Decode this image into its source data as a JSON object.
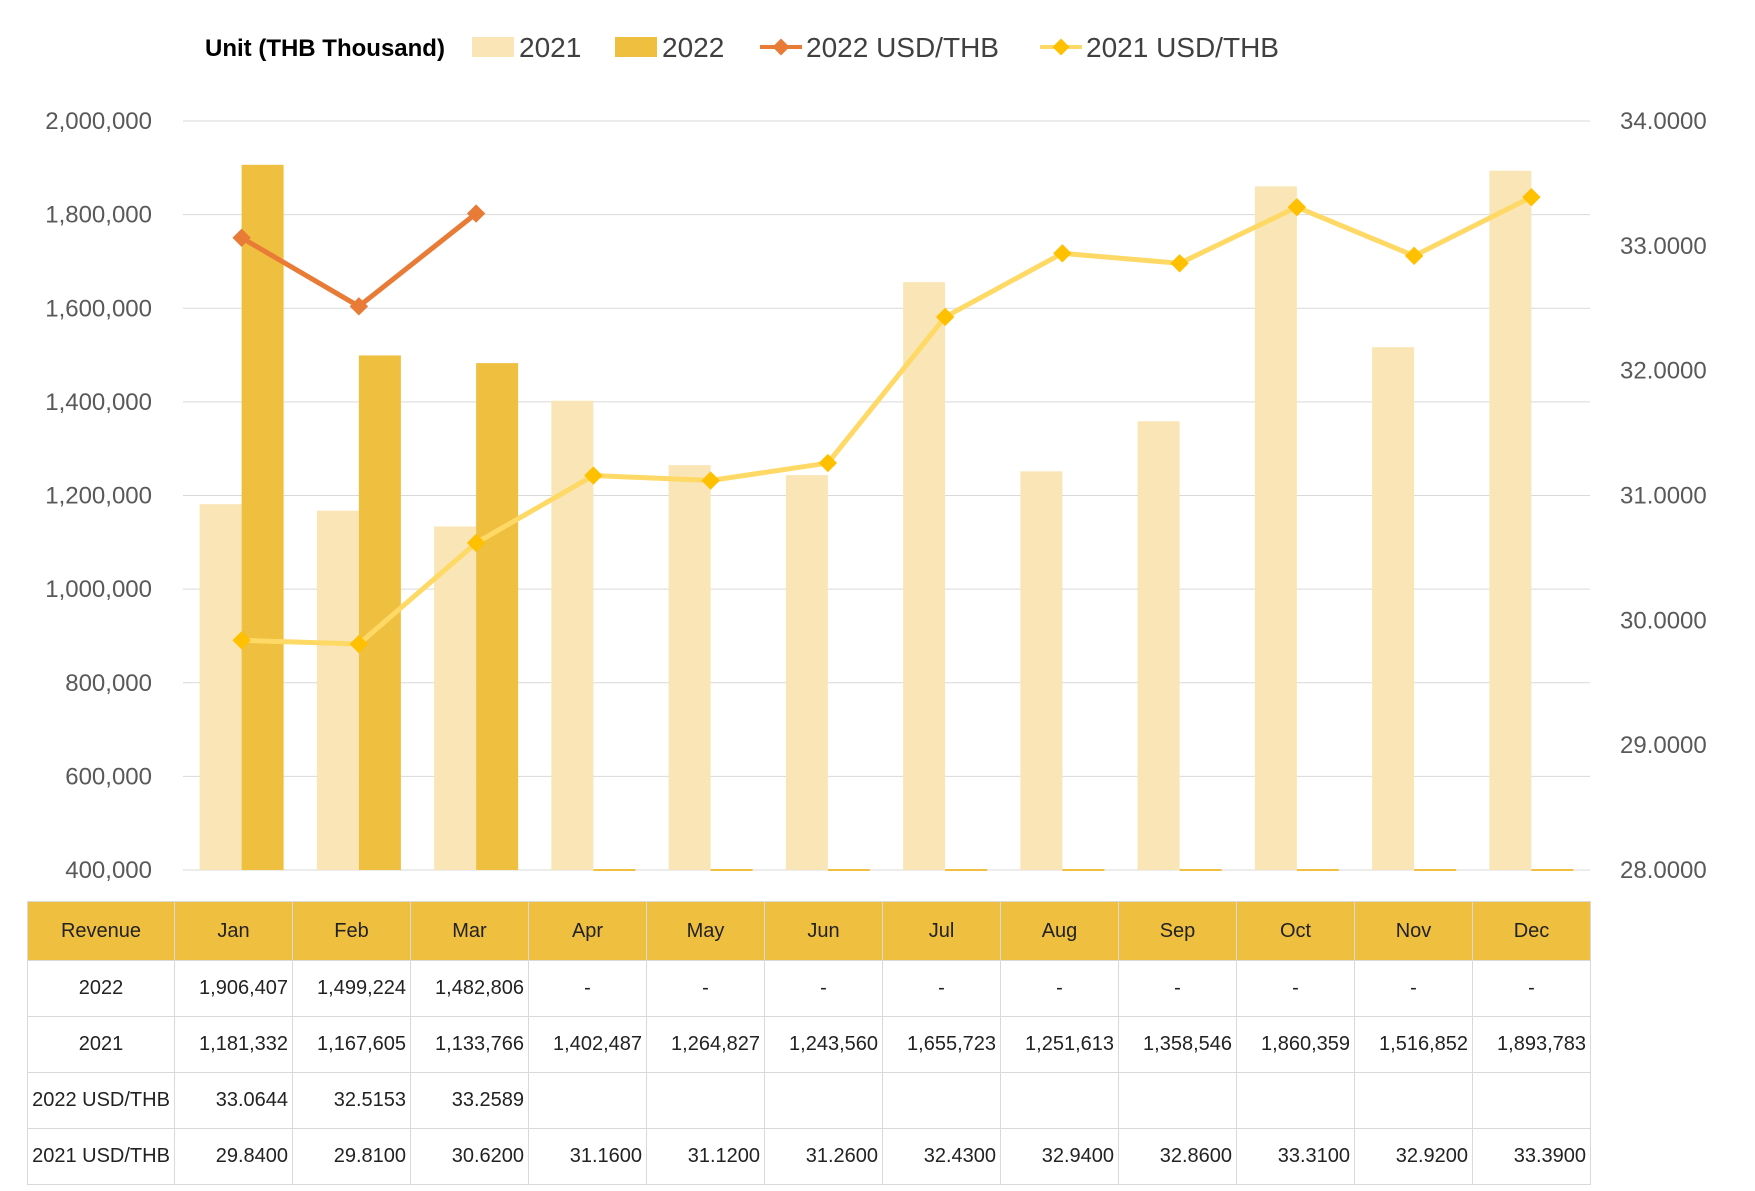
{
  "chart_data": {
    "type": "bar",
    "unit_label": "Unit (THB  Thousand)",
    "categories": [
      "Jan",
      "Feb",
      "Mar",
      "Apr",
      "May",
      "Jun",
      "Jul",
      "Aug",
      "Sep",
      "Oct",
      "Nov",
      "Dec"
    ],
    "bar_series": [
      {
        "name": "2021",
        "color": "#f9e5b5",
        "values": [
          1181332,
          1167605,
          1133766,
          1402487,
          1264827,
          1243560,
          1655723,
          1251613,
          1358546,
          1860359,
          1516852,
          1893783
        ]
      },
      {
        "name": "2022",
        "color": "#efbf3f",
        "values": [
          1906407,
          1499224,
          1482806,
          null,
          null,
          null,
          null,
          null,
          null,
          null,
          null,
          null
        ]
      }
    ],
    "line_series": [
      {
        "name": "2022 USD/THB",
        "color": "#e87c37",
        "values": [
          33.0644,
          32.5153,
          33.2589,
          null,
          null,
          null,
          null,
          null,
          null,
          null,
          null,
          null
        ]
      },
      {
        "name": "2021 USD/THB",
        "color": "#ffd966",
        "marker_color": "#ffc000",
        "values": [
          29.84,
          29.81,
          30.62,
          31.16,
          31.12,
          31.26,
          32.43,
          32.94,
          32.86,
          33.31,
          32.92,
          33.39
        ]
      }
    ],
    "y_left": {
      "min": 400000,
      "max": 2000000,
      "ticks": [
        "400,000",
        "600,000",
        "800,000",
        "1,000,000",
        "1,200,000",
        "1,400,000",
        "1,600,000",
        "1,800,000",
        "2,000,000"
      ]
    },
    "y_right": {
      "min": 28,
      "max": 34,
      "ticks": [
        "28.0000",
        "29.0000",
        "30.0000",
        "31.0000",
        "32.0000",
        "33.0000",
        "34.0000"
      ]
    },
    "grid": true,
    "legend_position": "top"
  },
  "table": {
    "header": [
      "Revenue",
      "Jan",
      "Feb",
      "Mar",
      "Apr",
      "May",
      "Jun",
      "Jul",
      "Aug",
      "Sep",
      "Oct",
      "Nov",
      "Dec"
    ],
    "rows": [
      {
        "label": "2022",
        "cells": [
          "1,906,407",
          "1,499,224",
          "1,482,806",
          "-",
          "-",
          "-",
          "-",
          "-",
          "-",
          "-",
          "-",
          "-"
        ]
      },
      {
        "label": "2021",
        "cells": [
          "1,181,332",
          "1,167,605",
          "1,133,766",
          "1,402,487",
          "1,264,827",
          "1,243,560",
          "1,655,723",
          "1,251,613",
          "1,358,546",
          "1,860,359",
          "1,516,852",
          "1,893,783"
        ]
      },
      {
        "label": "2022 USD/THB",
        "cells": [
          "33.0644",
          "32.5153",
          "33.2589",
          "",
          "",
          "",
          "",
          "",
          "",
          "",
          "",
          ""
        ]
      },
      {
        "label": "2021 USD/THB",
        "cells": [
          "29.8400",
          "29.8100",
          "30.6200",
          "31.1600",
          "31.1200",
          "31.2600",
          "32.4300",
          "32.9400",
          "32.8600",
          "33.3100",
          "32.9200",
          "33.3900"
        ]
      }
    ]
  }
}
